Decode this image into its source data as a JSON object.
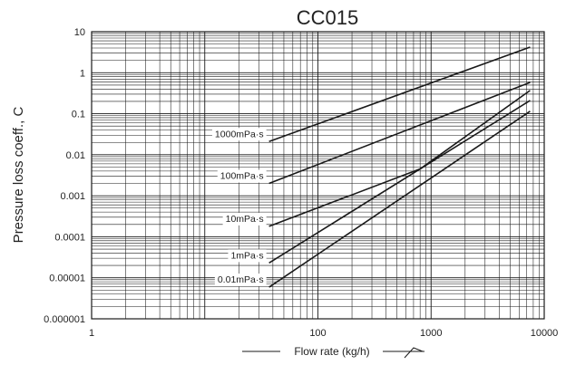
{
  "chart_data": {
    "type": "line",
    "title": "CC015",
    "xlabel": "Flow rate (kg/h)",
    "ylabel": "Pressure loss coeff., C",
    "x_scale": "log",
    "y_scale": "log",
    "xlim": [
      1,
      10000
    ],
    "ylim": [
      1e-06,
      10
    ],
    "grid": true,
    "x_ticks": [
      {
        "value": 1,
        "label": "1"
      },
      {
        "value": 100,
        "label": "100"
      },
      {
        "value": 1000,
        "label": "1000"
      },
      {
        "value": 10000,
        "label": "10000"
      }
    ],
    "y_ticks": [
      {
        "value": 10,
        "label": "10"
      },
      {
        "value": 1,
        "label": "1"
      },
      {
        "value": 0.1,
        "label": "0.1"
      },
      {
        "value": 0.01,
        "label": "0.01"
      },
      {
        "value": 0.001,
        "label": "0.001"
      },
      {
        "value": 0.0001,
        "label": "0.0001"
      },
      {
        "value": 1e-05,
        "label": "0.00001"
      },
      {
        "value": 1e-06,
        "label": "0.000001"
      }
    ],
    "series": [
      {
        "name": "1000mPa·s",
        "x": [
          37,
          7500
        ],
        "y": [
          0.021,
          4.2
        ]
      },
      {
        "name": "100mPa·s",
        "x": [
          37,
          7500
        ],
        "y": [
          0.002,
          0.58
        ]
      },
      {
        "name": "10mPa·s",
        "x": [
          37,
          800,
          7500
        ],
        "y": [
          0.00018,
          0.0045,
          0.37
        ]
      },
      {
        "name": "1mPa·s",
        "x": [
          37,
          7500
        ],
        "y": [
          2.3e-05,
          0.21
        ]
      },
      {
        "name": "0.01mPa·s",
        "x": [
          37,
          7500
        ],
        "y": [
          5.9e-06,
          0.115
        ]
      }
    ]
  }
}
